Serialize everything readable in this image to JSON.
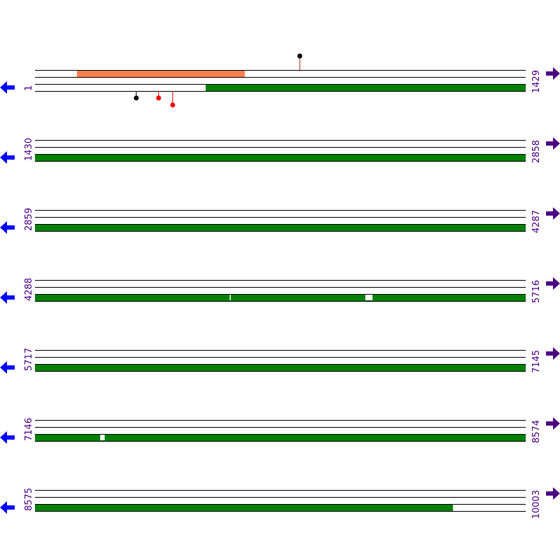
{
  "colors": {
    "line": "#000000",
    "forward_feature": "#ff7f50",
    "reverse_feature": "#008000",
    "gap": "#ffffff",
    "left_arrow": "#0000ff",
    "right_arrow": "#4b0082",
    "label": "#4b0082",
    "lollipop_black": "#000000",
    "lollipop_red": "#ff0000",
    "lollipop_stem_top": "#b22222"
  },
  "icons": {
    "left": "left-arrow-icon",
    "right": "right-arrow-icon"
  },
  "rows": [
    {
      "start_label": "1",
      "end_label": "1429",
      "start": 1,
      "end": 1429,
      "forward_features": [
        {
          "start": 123,
          "end": 611
        }
      ],
      "reverse_features": [
        {
          "start": 498,
          "end": 1429
        }
      ],
      "gaps": [],
      "lollipops_top": [
        {
          "pos": 772,
          "color": "black"
        }
      ],
      "lollipops_bottom": [
        {
          "pos": 296,
          "color": "black"
        },
        {
          "pos": 361,
          "color": "red"
        },
        {
          "pos": 402,
          "color": "red"
        }
      ]
    },
    {
      "start_label": "1430",
      "end_label": "2858",
      "start": 1430,
      "end": 2858,
      "forward_features": [],
      "reverse_features": [
        {
          "start": 1430,
          "end": 2858
        }
      ],
      "gaps": [],
      "lollipops_top": [],
      "lollipops_bottom": []
    },
    {
      "start_label": "2859",
      "end_label": "4287",
      "start": 2859,
      "end": 4287,
      "forward_features": [],
      "reverse_features": [
        {
          "start": 2859,
          "end": 4287
        }
      ],
      "gaps": [],
      "lollipops_top": [],
      "lollipops_bottom": []
    },
    {
      "start_label": "4288",
      "end_label": "5716",
      "start": 4288,
      "end": 5716,
      "forward_features": [],
      "reverse_features": [
        {
          "start": 4288,
          "end": 5716
        }
      ],
      "gaps": [
        {
          "start": 4855,
          "end": 4857
        },
        {
          "start": 5250,
          "end": 5270
        }
      ],
      "lollipops_top": [],
      "lollipops_bottom": []
    },
    {
      "start_label": "5717",
      "end_label": "7145",
      "start": 5717,
      "end": 7145,
      "forward_features": [],
      "reverse_features": [
        {
          "start": 5717,
          "end": 7145
        }
      ],
      "gaps": [],
      "lollipops_top": [],
      "lollipops_bottom": []
    },
    {
      "start_label": "7146",
      "end_label": "8574",
      "start": 7146,
      "end": 8574,
      "forward_features": [],
      "reverse_features": [
        {
          "start": 7146,
          "end": 8574
        }
      ],
      "gaps": [
        {
          "start": 7336,
          "end": 7348
        }
      ],
      "lollipops_top": [],
      "lollipops_bottom": []
    },
    {
      "start_label": "8575",
      "end_label": "10003",
      "start": 8575,
      "end": 10003,
      "forward_features": [],
      "reverse_features": [
        {
          "start": 8575,
          "end": 9791
        }
      ],
      "gaps": [],
      "lollipops_top": [],
      "lollipops_bottom": []
    }
  ]
}
